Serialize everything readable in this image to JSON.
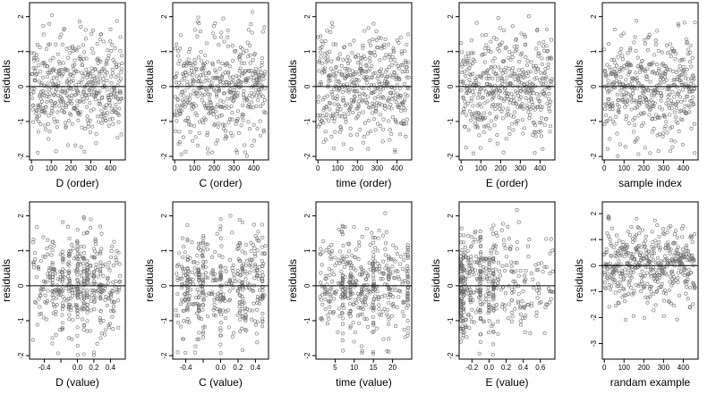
{
  "chart_data": [
    {
      "type": "scatter",
      "xlabel": "D (order)",
      "ylabel": "residuals",
      "xlim": [
        -10,
        475
      ],
      "ylim": [
        -2.1,
        2.4
      ],
      "xticks": [
        0,
        100,
        200,
        300,
        400
      ],
      "xtick_labels": [
        "0",
        "100",
        "200",
        "300",
        "400"
      ],
      "yticks": [
        -2,
        -1,
        0,
        1,
        2
      ],
      "ytick_labels": [
        "-2",
        "-1",
        "0",
        "1",
        "2"
      ],
      "hline": 0,
      "n": 460,
      "x_kind": "index",
      "seed": 11
    },
    {
      "type": "scatter",
      "xlabel": "C (order)",
      "ylabel": "residuals",
      "xlim": [
        -10,
        475
      ],
      "ylim": [
        -2.1,
        2.4
      ],
      "xticks": [
        0,
        100,
        200,
        300,
        400
      ],
      "xtick_labels": [
        "0",
        "100",
        "200",
        "300",
        "400"
      ],
      "yticks": [
        -2,
        -1,
        0,
        1,
        2
      ],
      "ytick_labels": [
        "-2",
        "-1",
        "0",
        "1",
        "2"
      ],
      "hline": 0,
      "n": 460,
      "x_kind": "index",
      "seed": 23
    },
    {
      "type": "scatter",
      "xlabel": "time (order)",
      "ylabel": "residuals",
      "xlim": [
        -10,
        475
      ],
      "ylim": [
        -2.1,
        2.4
      ],
      "xticks": [
        0,
        100,
        200,
        300,
        400
      ],
      "xtick_labels": [
        "0",
        "100",
        "200",
        "300",
        "400"
      ],
      "yticks": [
        -2,
        -1,
        0,
        1,
        2
      ],
      "ytick_labels": [
        "-2",
        "-1",
        "0",
        "1",
        "2"
      ],
      "hline": 0,
      "n": 460,
      "x_kind": "index",
      "seed": 37
    },
    {
      "type": "scatter",
      "xlabel": "E (order)",
      "ylabel": "residuals",
      "xlim": [
        -10,
        475
      ],
      "ylim": [
        -2.1,
        2.4
      ],
      "xticks": [
        0,
        100,
        200,
        300,
        400
      ],
      "xtick_labels": [
        "0",
        "100",
        "200",
        "300",
        "400"
      ],
      "yticks": [
        -2,
        -1,
        0,
        1,
        2
      ],
      "ytick_labels": [
        "-2",
        "-1",
        "0",
        "1",
        "2"
      ],
      "hline": 0,
      "n": 460,
      "x_kind": "index",
      "seed": 41
    },
    {
      "type": "scatter",
      "xlabel": "sample index",
      "ylabel": "residuals",
      "xlim": [
        -10,
        475
      ],
      "ylim": [
        -2.1,
        2.4
      ],
      "xticks": [
        0,
        100,
        200,
        300,
        400
      ],
      "xtick_labels": [
        "0",
        "100",
        "200",
        "300",
        "400"
      ],
      "yticks": [
        -2,
        -1,
        0,
        1,
        2
      ],
      "ytick_labels": [
        "-2",
        "-1",
        "0",
        "1",
        "2"
      ],
      "hline": 0,
      "n": 460,
      "x_kind": "index",
      "seed": 53
    },
    {
      "type": "scatter",
      "xlabel": "D (value)",
      "ylabel": "residuals",
      "xlim": [
        -0.58,
        0.58
      ],
      "ylim": [
        -2.1,
        2.4
      ],
      "xticks": [
        -0.4,
        -0.2,
        0,
        0.2,
        0.4
      ],
      "xtick_labels": [
        "-0.4",
        "",
        "0.0",
        "0.2",
        "0.4"
      ],
      "yticks": [
        -2,
        -1,
        0,
        1,
        2
      ],
      "ytick_labels": [
        "-2",
        "-1",
        "0",
        "1",
        "2"
      ],
      "hline": 0,
      "n": 460,
      "x_kind": "uniform",
      "x_range": [
        -0.55,
        0.52
      ],
      "clusters": [
        -0.3,
        -0.18,
        -0.1,
        0.0,
        0.08,
        0.12,
        0.2,
        0.28
      ],
      "seed": 61
    },
    {
      "type": "scatter",
      "xlabel": "C (value)",
      "ylabel": "residuals",
      "xlim": [
        -0.55,
        0.55
      ],
      "ylim": [
        -2.1,
        2.4
      ],
      "xticks": [
        -0.4,
        -0.2,
        0,
        0.2,
        0.4
      ],
      "xtick_labels": [
        "-0.4",
        "",
        "0.0",
        "0.2",
        "0.4"
      ],
      "yticks": [
        -2,
        -1,
        0,
        1,
        2
      ],
      "ytick_labels": [
        "-2",
        "-1",
        "0",
        "1",
        "2"
      ],
      "hline": 0,
      "n": 460,
      "x_kind": "uniform",
      "x_range": [
        -0.52,
        0.52
      ],
      "clusters": [
        -0.38,
        -0.25,
        -0.2,
        0.0,
        0.22,
        0.25,
        0.42,
        0.48
      ],
      "seed": 67
    },
    {
      "type": "scatter",
      "xlabel": "time (value)",
      "ylabel": "residuals",
      "xlim": [
        0,
        25
      ],
      "ylim": [
        -2.1,
        2.4
      ],
      "xticks": [
        5,
        10,
        15,
        20
      ],
      "xtick_labels": [
        "5",
        "10",
        "15",
        "20"
      ],
      "yticks": [
        -2,
        -1,
        0,
        1,
        2
      ],
      "ytick_labels": [
        "-2",
        "-1",
        "0",
        "1",
        "2"
      ],
      "hline": 0,
      "n": 460,
      "x_kind": "uniform",
      "x_range": [
        1,
        24
      ],
      "clusters": [
        7,
        9,
        12,
        15,
        19,
        24
      ],
      "seed": 71
    },
    {
      "type": "scatter",
      "xlabel": "E (value)",
      "ylabel": "residuals",
      "xlim": [
        -0.35,
        0.77
      ],
      "ylim": [
        -2.1,
        2.4
      ],
      "xticks": [
        -0.2,
        0,
        0.2,
        0.4,
        0.6
      ],
      "xtick_labels": [
        "-0.2",
        "0.0",
        "0.2",
        "0.4",
        "0.6"
      ],
      "yticks": [
        -2,
        -1,
        0,
        1,
        2
      ],
      "ytick_labels": [
        "-2",
        "-1",
        "0",
        "1",
        "2"
      ],
      "hline": 0,
      "n": 460,
      "x_kind": "skewed",
      "x_range": [
        -0.33,
        0.75
      ],
      "clusters": [
        -0.33,
        -0.3,
        -0.1,
        0.0,
        0.05
      ],
      "seed": 79
    },
    {
      "type": "scatter",
      "xlabel": "randam example",
      "ylabel": "residuals",
      "xlim": [
        -10,
        475
      ],
      "ylim": [
        -3.6,
        2.45
      ],
      "xticks": [
        0,
        100,
        200,
        300,
        400
      ],
      "xtick_labels": [
        "0",
        "100",
        "200",
        "300",
        "400"
      ],
      "yticks": [
        -3,
        -2,
        -1,
        0,
        1,
        2
      ],
      "ytick_labels": [
        "-3",
        "-2",
        "-1",
        "0",
        "1",
        "2"
      ],
      "hline": 0,
      "n": 460,
      "x_kind": "index",
      "seed": 83
    }
  ]
}
